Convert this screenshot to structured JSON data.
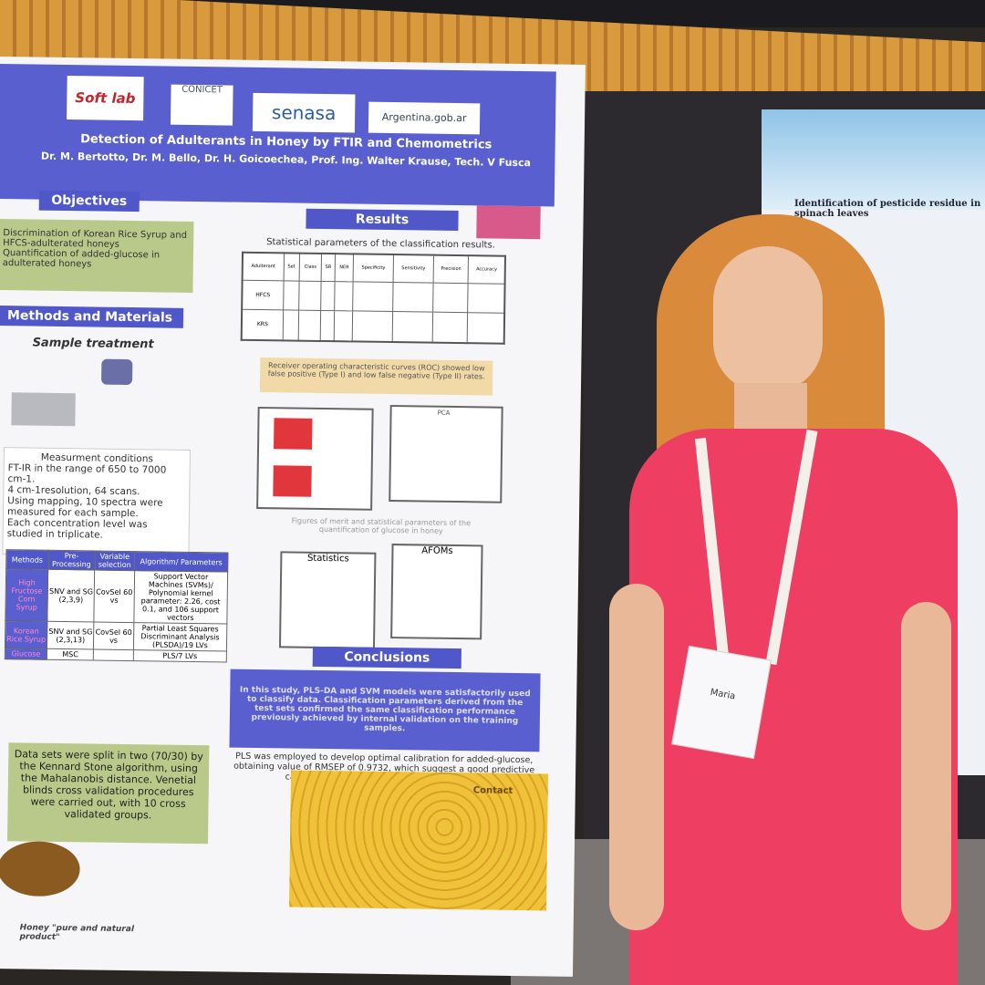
{
  "poster": {
    "logos": [
      "Soft lab",
      "CONICET",
      "senasa",
      "Argentina.gob.ar"
    ],
    "title": "Detection of Adulterants in Honey by FTIR and Chemometrics",
    "authors": "Dr. M. Bertotto, Dr. M. Bello, Dr. H. Goicoechea, Prof. Ing. Walter Krause, Tech. V Fusca",
    "objectives": {
      "heading": "Objectives",
      "items": [
        "Discrimination of Korean Rice Syrup and",
        "HFCS-adulterated honeys",
        "Quantification of added-glucose in",
        "adulterated honeys"
      ]
    },
    "methods": {
      "heading": "Methods and Materials",
      "sample_treatment": "Sample treatment",
      "measurement_heading": "Measurment conditions",
      "measurement_items": [
        "FT-IR in the range of 650 to 7000 cm-1.",
        "4 cm-1resolution, 64 scans.",
        "Using mapping, 10 spectra were measured for each sample.",
        "Each concentration level was studied in triplicate."
      ],
      "table": {
        "header": [
          "Methods",
          "Pre-Processing",
          "Variable selection",
          "Algorithm/ Parameters"
        ],
        "rows": [
          [
            "High Fructose Corn Syrup",
            "SNV and SG (2,3,9)",
            "CovSel 60 vs",
            "Support Vector Machines (SVMs)/ Polynomial kernel parameter: 2.26, cost 0.1, and 106 support vectors"
          ],
          [
            "Korean Rice Syrup",
            "SNV and SG (2,3,13)",
            "CovSel 60 vs",
            "Partial Least Squares Discriminant Analysis (PLSDA)/19 LVs"
          ],
          [
            "Glucose",
            "MSC",
            "",
            "PLS/7 LVs"
          ]
        ]
      },
      "datasets": "Data sets were split in two (70/30) by the Kennard Stone algorithm, using the Mahalanobis distance. Venetial blinds cross validation procedures were carried out, with 10 cross validated groups."
    },
    "results": {
      "heading": "Results",
      "table_caption": "Statistical parameters of the classification results.",
      "table_header": [
        "Adulterant",
        "Set",
        "Class",
        "SR",
        "NER",
        "Specificity",
        "Sensitivity",
        "Precision",
        "Accuracy"
      ],
      "table_rows": [
        "HFCS",
        "KRS"
      ],
      "roc": "Receiver operating characteristic curves (ROC) showed low false positive (Type I) and low false negative (Type II) rates.",
      "pca": "PCA",
      "merit_caption": "Figures of merit and statistical parameters of the quantification of glucose in honey",
      "statistics": "Statistics",
      "afoms": "AFOMs"
    },
    "conclusions": {
      "heading": "Conclusions",
      "text1": "In this study, PLS-DA and SVM models were satisfactorily used to classify data. Classification parameters derived from the test sets confirmed the same classification performance previously achieved by internal validation on the training samples.",
      "text2": "PLS was employed to develop optimal calibration for added-glucose, obtaining value of RMSEP of 0.9732, which suggest a good predictive capacity of the model employed in this study."
    },
    "contact": "Contact",
    "honey_caption": "Honey \"pure and natural product\""
  },
  "neighbor_poster": {
    "title": "Identification of pesticide residue in spinach leaves"
  },
  "badge": {
    "name": "Maria"
  }
}
